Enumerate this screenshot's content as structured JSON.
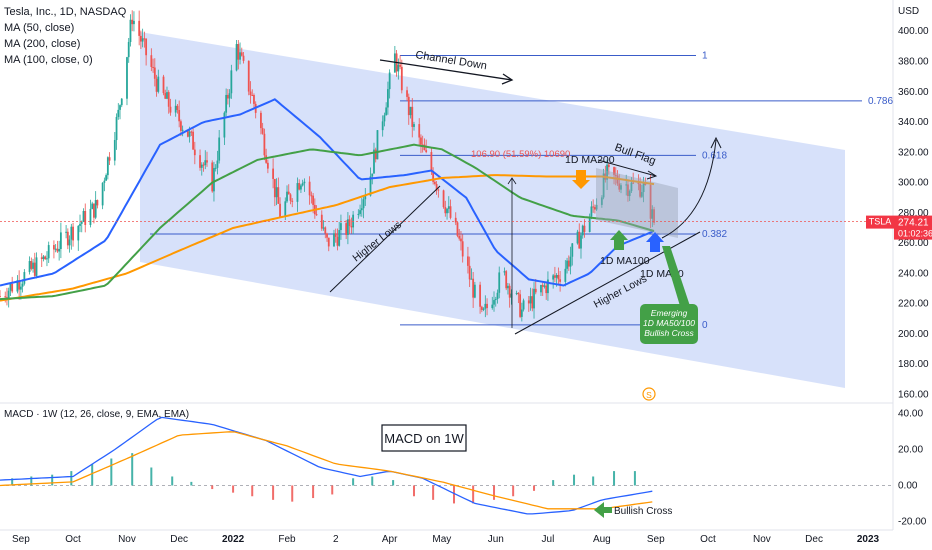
{
  "header": {
    "symbol_line": "Tesla, Inc., 1D, NASDAQ",
    "ma50": "MA (50, close)",
    "ma200": "MA (200, close)",
    "ma100": "MA (100, close, 0)",
    "currency": "USD",
    "macd_title": "MACD · 1W (12, 26, close, 9, EMA, EMA)"
  },
  "price_badge": {
    "ticker": "TSLA",
    "price": "274.21",
    "countdown": "01:02:36"
  },
  "annotations": {
    "channel_down": "Channel Down",
    "bull_flag": "Bull Flag",
    "higher_lows": "Higher Lows",
    "ma200_label": "1D MA200",
    "ma100_label": "1D MA100",
    "ma50_label": "1D MA50",
    "measure": "106.90 (51.59%) 10690",
    "emerging": [
      "Emerging",
      "1D MA50/100",
      "Bullish Cross"
    ],
    "macd_box": "MACD on 1W",
    "bullish_cross": "Bullish Cross",
    "event_marker": "S"
  },
  "colors": {
    "up": "#26a69a",
    "down": "#ef5350",
    "ma50": "#2962ff",
    "ma100": "#43a047",
    "ma200": "#ff9800",
    "channel": "#b7c9f5",
    "fib": "#3a5cc9",
    "macd": "#2962ff",
    "signal": "#ff9800",
    "tsla_badge": "#f23645",
    "emerging_box": "#43a047"
  },
  "chart_data": [
    {
      "type": "candlestick",
      "title": "Tesla, Inc., 1D, NASDAQ",
      "ylabel": "USD",
      "ylim": [
        155,
        418
      ],
      "y_ticks": [
        160,
        180,
        200,
        220,
        240,
        260,
        280,
        300,
        320,
        340,
        360,
        380,
        400
      ],
      "x_ticks": [
        "Sep",
        "Oct",
        "Nov",
        "Dec",
        "2022",
        "Feb",
        "2",
        "Apr",
        "May",
        "Jun",
        "Jul",
        "Aug",
        "Sep",
        "Oct",
        "Nov",
        "Dec",
        "2023"
      ],
      "price_path_anchors": [
        [
          "2021-08-20",
          225
        ],
        [
          "2021-09-15",
          250
        ],
        [
          "2021-10-15",
          285
        ],
        [
          "2021-10-27",
          345
        ],
        [
          "2021-11-04",
          410
        ],
        [
          "2021-11-20",
          360
        ],
        [
          "2021-12-05",
          335
        ],
        [
          "2021-12-20",
          300
        ],
        [
          "2022-01-03",
          390
        ],
        [
          "2022-01-15",
          345
        ],
        [
          "2022-01-28",
          280
        ],
        [
          "2022-02-10",
          305
        ],
        [
          "2022-02-24",
          260
        ],
        [
          "2022-03-08",
          270
        ],
        [
          "2022-03-20",
          300
        ],
        [
          "2022-04-04",
          383
        ],
        [
          "2022-04-15",
          335
        ],
        [
          "2022-04-28",
          300
        ],
        [
          "2022-05-10",
          265
        ],
        [
          "2022-05-24",
          210
        ],
        [
          "2022-06-05",
          240
        ],
        [
          "2022-06-16",
          215
        ],
        [
          "2022-06-28",
          230
        ],
        [
          "2022-07-10",
          242
        ],
        [
          "2022-07-24",
          275
        ],
        [
          "2022-08-04",
          305
        ],
        [
          "2022-08-16",
          298
        ],
        [
          "2022-08-25",
          297
        ],
        [
          "2022-08-31",
          274
        ]
      ],
      "last_price": 274.21,
      "series": [
        {
          "name": "MA (50, close)",
          "anchors": [
            [
              "2021-08-20",
              232
            ],
            [
              "2021-09-20",
              240
            ],
            [
              "2021-10-20",
              262
            ],
            [
              "2021-11-20",
              325
            ],
            [
              "2021-12-15",
              340
            ],
            [
              "2022-01-05",
              345
            ],
            [
              "2022-01-25",
              355
            ],
            [
              "2022-02-20",
              330
            ],
            [
              "2022-03-15",
              302
            ],
            [
              "2022-04-10",
              305
            ],
            [
              "2022-04-25",
              308
            ],
            [
              "2022-05-15",
              290
            ],
            [
              "2022-06-01",
              255
            ],
            [
              "2022-06-20",
              236
            ],
            [
              "2022-07-10",
              232
            ],
            [
              "2022-07-25",
              240
            ],
            [
              "2022-08-10",
              258
            ],
            [
              "2022-08-31",
              268
            ]
          ]
        },
        {
          "name": "MA (200, close)",
          "anchors": [
            [
              "2021-08-20",
              222
            ],
            [
              "2021-10-01",
              230
            ],
            [
              "2021-11-01",
              240
            ],
            [
              "2021-12-01",
              255
            ],
            [
              "2022-01-01",
              270
            ],
            [
              "2022-02-01",
              278
            ],
            [
              "2022-03-01",
              285
            ],
            [
              "2022-04-01",
              297
            ],
            [
              "2022-05-01",
              303
            ],
            [
              "2022-06-01",
              305
            ],
            [
              "2022-07-01",
              304
            ],
            [
              "2022-08-01",
              304
            ],
            [
              "2022-08-31",
              299
            ]
          ]
        },
        {
          "name": "MA (100, close, 0)",
          "anchors": [
            [
              "2021-08-20",
              223
            ],
            [
              "2021-09-20",
              225
            ],
            [
              "2021-10-20",
              232
            ],
            [
              "2021-11-20",
              270
            ],
            [
              "2021-12-20",
              300
            ],
            [
              "2022-01-15",
              315
            ],
            [
              "2022-02-15",
              322
            ],
            [
              "2022-03-15",
              318
            ],
            [
              "2022-04-15",
              325
            ],
            [
              "2022-05-01",
              322
            ],
            [
              "2022-05-20",
              310
            ],
            [
              "2022-06-15",
              290
            ],
            [
              "2022-07-15",
              278
            ],
            [
              "2022-08-10",
              275
            ],
            [
              "2022-08-31",
              268
            ]
          ]
        }
      ],
      "fib_levels": [
        {
          "label": "1",
          "price": 384
        },
        {
          "label": "0.786",
          "price": 354
        },
        {
          "label": "0.618",
          "price": 318
        },
        {
          "label": "0.382",
          "price": 266
        },
        {
          "label": "0",
          "price": 206
        }
      ]
    },
    {
      "type": "bar+line",
      "title": "MACD · 1W (12, 26, close, 9, EMA, EMA)",
      "ylim": [
        -22,
        42
      ],
      "y_ticks": [
        "40.00",
        "20.00",
        "0.00",
        "-20.00"
      ],
      "histogram": [
        4,
        5,
        6,
        8,
        12,
        15,
        18,
        10,
        5,
        2,
        -2,
        -4,
        -6,
        -8,
        -9,
        -7,
        -5,
        4,
        5,
        3,
        -6,
        -8,
        -10,
        -10,
        -8,
        -6,
        -3,
        3,
        6,
        5,
        8,
        8
      ],
      "series": [
        {
          "name": "MACD",
          "anchors": [
            [
              "2021-08-20",
              3
            ],
            [
              "2021-10-01",
              5
            ],
            [
              "2021-10-25",
              20
            ],
            [
              "2021-11-20",
              38
            ],
            [
              "2021-12-20",
              34
            ],
            [
              "2022-01-20",
              25
            ],
            [
              "2022-02-20",
              10
            ],
            [
              "2022-03-15",
              5
            ],
            [
              "2022-04-01",
              8
            ],
            [
              "2022-04-20",
              4
            ],
            [
              "2022-05-20",
              -10
            ],
            [
              "2022-06-20",
              -16
            ],
            [
              "2022-07-15",
              -14
            ],
            [
              "2022-08-01",
              -8
            ],
            [
              "2022-08-31",
              -3
            ]
          ]
        },
        {
          "name": "Signal",
          "anchors": [
            [
              "2021-08-20",
              0
            ],
            [
              "2021-10-01",
              2
            ],
            [
              "2021-11-01",
              15
            ],
            [
              "2021-12-01",
              28
            ],
            [
              "2022-01-01",
              30
            ],
            [
              "2022-02-01",
              22
            ],
            [
              "2022-03-01",
              12
            ],
            [
              "2022-04-01",
              8
            ],
            [
              "2022-05-01",
              2
            ],
            [
              "2022-06-01",
              -6
            ],
            [
              "2022-07-01",
              -13
            ],
            [
              "2022-08-01",
              -13
            ],
            [
              "2022-08-31",
              -9
            ]
          ]
        }
      ]
    }
  ]
}
